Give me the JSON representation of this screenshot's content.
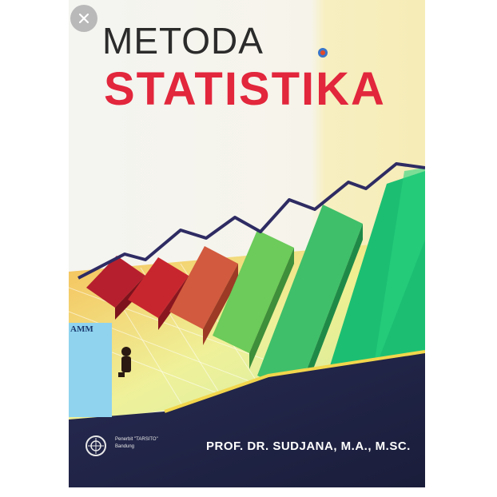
{
  "close_button": {
    "icon": "close-icon"
  },
  "cover": {
    "title_line1": "METODA",
    "title_line2": "STATISTIKA",
    "author": "PROF. DR. SUDJANA, M.A., M.SC.",
    "publisher_line1": "Penerbit \"TARSITO\"",
    "publisher_line2": "Bandung",
    "side_book_label": "AMM",
    "colors": {
      "title_red": "#e2263c",
      "title_dark": "#2b2b2b",
      "band_navy": "#1f2447"
    }
  }
}
